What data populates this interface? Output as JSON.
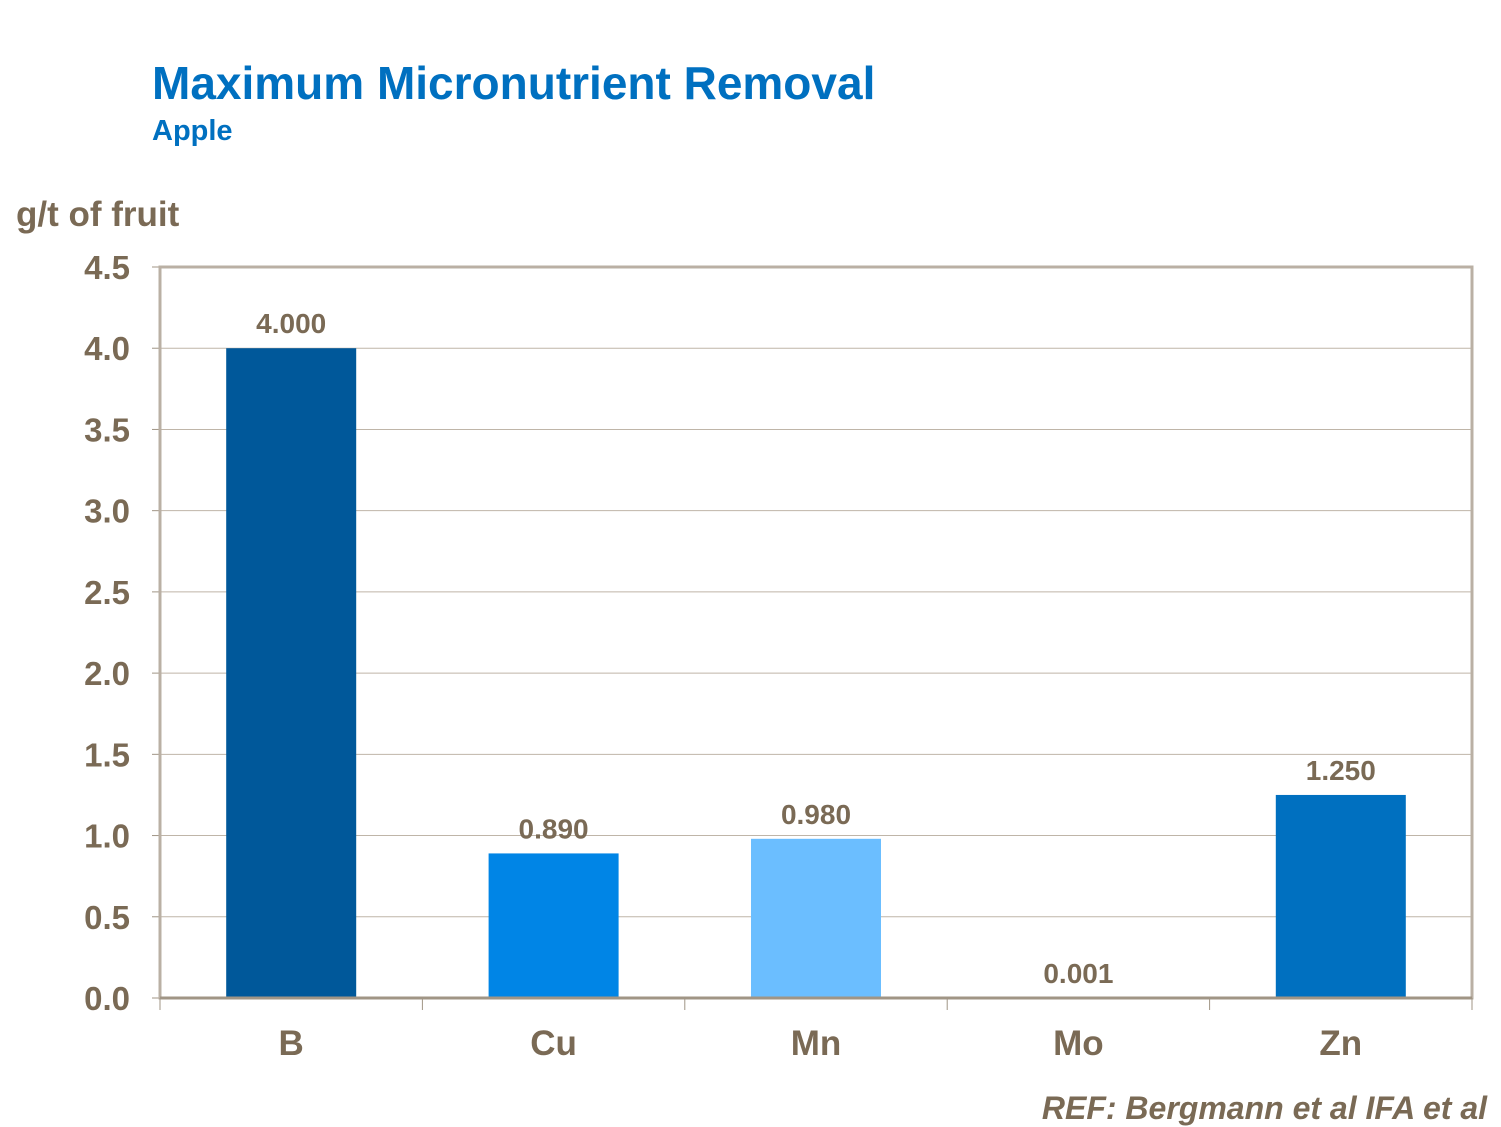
{
  "chart_data": {
    "type": "bar",
    "title": "Maximum Micronutrient Removal",
    "subtitle": "Apple",
    "ylabel": "g/t of fruit",
    "xlabel": "",
    "categories": [
      "B",
      "Cu",
      "Mn",
      "Mo",
      "Zn"
    ],
    "values": [
      4.0,
      0.89,
      0.98,
      0.001,
      1.25
    ],
    "data_labels": [
      "4.000",
      "0.890",
      "0.980",
      "0.001",
      "1.250"
    ],
    "colors": [
      "#00589A",
      "#0085E6",
      "#6BBEFF",
      "#9DB6CC",
      "#0070C0"
    ],
    "ylim": [
      0,
      4.5
    ],
    "yticks": [
      "0.0",
      "0.5",
      "1.0",
      "1.5",
      "2.0",
      "2.5",
      "3.0",
      "3.5",
      "4.0",
      "4.5"
    ],
    "grid": true,
    "legend": "none",
    "annotation": "REF: Bergmann et al IFA et al"
  }
}
